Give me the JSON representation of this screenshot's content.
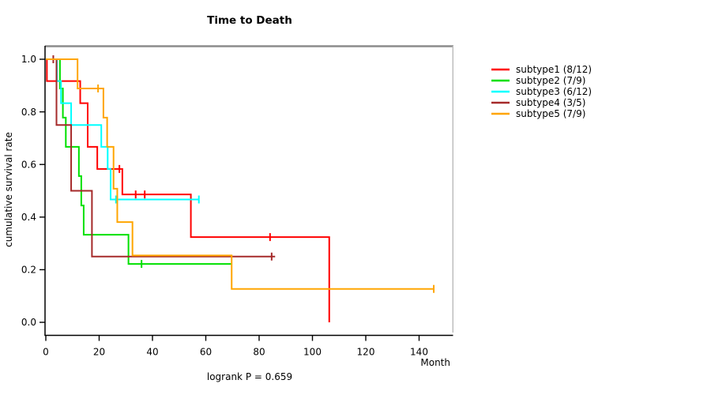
{
  "title": "Time to Death",
  "ylabel": "cumulative survival rate",
  "xlabel": "Month",
  "footnote": "logrank P = 0.659",
  "axes": {
    "x_ticks": [
      0,
      20,
      40,
      60,
      80,
      100,
      120,
      140
    ],
    "y_ticks": [
      "1.0",
      "0.8",
      "0.6",
      "0.4",
      "0.2",
      "0.0"
    ],
    "y_tick_values": [
      1.0,
      0.8,
      0.6,
      0.4,
      0.2,
      0.0
    ],
    "frame_color": "#8c8c8c",
    "axis_color": "#000000"
  },
  "chart_data": {
    "type": "line",
    "subtype": "kaplan-meier-step",
    "title": "Time to Death",
    "xlabel": "Month",
    "ylabel": "cumulative survival rate",
    "xlim": [
      0,
      152
    ],
    "ylim": [
      0.0,
      1.0
    ],
    "grid": false,
    "legend_position": "right-outside",
    "series": [
      {
        "name": "subtype1",
        "label": "subtype1 (8/12)",
        "color": "#ff0000",
        "start": [
          0,
          1.0
        ],
        "events": [
          [
            0.4,
            0.917
          ],
          [
            12.9,
            0.833
          ],
          [
            15.7,
            0.667
          ],
          [
            19.3,
            0.583
          ],
          [
            28.7,
            0.486
          ],
          [
            54.4,
            0.324
          ],
          [
            106.3,
            0.0
          ]
        ],
        "end_time": 106.3,
        "censors": [
          [
            27.6,
            0.583
          ],
          [
            33.7,
            0.486
          ],
          [
            37.1,
            0.486
          ],
          [
            84.1,
            0.324
          ]
        ]
      },
      {
        "name": "subtype2",
        "label": "subtype2 (7/9)",
        "color": "#00e000",
        "start": [
          0,
          1.0
        ],
        "events": [
          [
            5.3,
            0.889
          ],
          [
            6.4,
            0.778
          ],
          [
            7.5,
            0.667
          ],
          [
            12.4,
            0.556
          ],
          [
            13.3,
            0.444
          ],
          [
            14.2,
            0.333
          ],
          [
            31.0,
            0.222
          ]
        ],
        "end_time": 69.5,
        "censors": [
          [
            35.9,
            0.222
          ]
        ]
      },
      {
        "name": "subtype3",
        "label": "subtype3 (6/12)",
        "color": "#00ffff",
        "start": [
          0,
          1.0
        ],
        "events": [
          [
            4.2,
            0.917
          ],
          [
            5.7,
            0.833
          ],
          [
            9.5,
            0.75
          ],
          [
            20.8,
            0.667
          ],
          [
            23.2,
            0.583
          ],
          [
            24.3,
            0.467
          ]
        ],
        "end_time": 57.4,
        "censors": [
          [
            26.3,
            0.467
          ],
          [
            57.4,
            0.467
          ]
        ]
      },
      {
        "name": "subtype4",
        "label": "subtype4 (3/5)",
        "color": "#a52a2a",
        "start": [
          0,
          1.0
        ],
        "events": [
          [
            4.0,
            0.75
          ],
          [
            9.5,
            0.5
          ],
          [
            17.3,
            0.25
          ]
        ],
        "end_time": 86.0,
        "censors": [
          [
            2.8,
            1.0
          ],
          [
            84.7,
            0.25
          ]
        ]
      },
      {
        "name": "subtype5",
        "label": "subtype5 (7/9)",
        "color": "#ffa500",
        "start": [
          0,
          1.0
        ],
        "events": [
          [
            11.9,
            0.889
          ],
          [
            21.6,
            0.778
          ],
          [
            23.0,
            0.667
          ],
          [
            25.4,
            0.508
          ],
          [
            26.8,
            0.381
          ],
          [
            32.5,
            0.254
          ],
          [
            69.7,
            0.127
          ]
        ],
        "end_time": 145.5,
        "censors": [
          [
            19.6,
            0.889
          ],
          [
            145.5,
            0.127
          ]
        ]
      }
    ]
  }
}
